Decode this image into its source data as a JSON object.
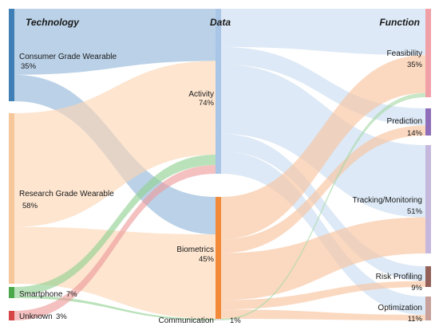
{
  "headers": {
    "technology": "Technology",
    "data": "Data",
    "function": "Function"
  },
  "nodes": [
    {
      "id": "consumer",
      "name": "Consumer Grade Wearable",
      "pct": "35%",
      "column": "technology",
      "color": "#3f7fb5"
    },
    {
      "id": "research",
      "name": "Research Grade Wearable",
      "pct": "58%",
      "column": "technology",
      "color": "#f7c79c"
    },
    {
      "id": "smartphone",
      "name": "Smartphone",
      "pct": "7%",
      "column": "technology",
      "color": "#4aa84a"
    },
    {
      "id": "unknown",
      "name": "Unknown",
      "pct": "3%",
      "column": "technology",
      "color": "#d64545"
    },
    {
      "id": "activity",
      "name": "Activity",
      "pct": "74%",
      "column": "data",
      "color": "#a9c6e6"
    },
    {
      "id": "biometrics",
      "name": "Biometrics",
      "pct": "45%",
      "column": "data",
      "color": "#f28a3a"
    },
    {
      "id": "communication",
      "name": "Communication",
      "pct": "1%",
      "column": "data",
      "color": "#dddddd"
    },
    {
      "id": "feasibility",
      "name": "Feasibility",
      "pct": "35%",
      "column": "function",
      "color": "#f2a0a8"
    },
    {
      "id": "prediction",
      "name": "Prediction",
      "pct": "14%",
      "column": "function",
      "color": "#8f6db8"
    },
    {
      "id": "tracking",
      "name": "Tracking/Monitoring",
      "pct": "51%",
      "column": "function",
      "color": "#c6b7dc"
    },
    {
      "id": "risk",
      "name": "Risk Profiling",
      "pct": "9%",
      "column": "function",
      "color": "#93605a"
    },
    {
      "id": "optimization",
      "name": "Optimization",
      "pct": "11%",
      "column": "function",
      "color": "#c9a19c"
    }
  ],
  "links": [
    {
      "source": "consumer",
      "target": "activity",
      "value": 30,
      "color": "#8fb4d9"
    },
    {
      "source": "consumer",
      "target": "biometrics",
      "value": 12,
      "color": "#8fb4d9"
    },
    {
      "source": "research",
      "target": "activity",
      "value": 54,
      "color": "#fbd5b3"
    },
    {
      "source": "research",
      "target": "biometrics",
      "value": 27,
      "color": "#fbd5b3"
    },
    {
      "source": "smartphone",
      "target": "activity",
      "value": 6,
      "color": "#8fd08f"
    },
    {
      "source": "smartphone",
      "target": "communication",
      "value": 2,
      "color": "#8fd08f"
    },
    {
      "source": "unknown",
      "target": "activity",
      "value": 5,
      "color": "#ee9a9a"
    },
    {
      "source": "activity",
      "target": "feasibility",
      "value": 22,
      "color": "#c8dbf0"
    },
    {
      "source": "activity",
      "target": "prediction",
      "value": 10,
      "color": "#c8dbf0"
    },
    {
      "source": "activity",
      "target": "tracking",
      "value": 40,
      "color": "#c8dbf0"
    },
    {
      "source": "activity",
      "target": "risk",
      "value": 10,
      "color": "#c8dbf0"
    },
    {
      "source": "activity",
      "target": "optimization",
      "value": 13,
      "color": "#c8dbf0"
    },
    {
      "source": "biometrics",
      "target": "feasibility",
      "value": 18,
      "color": "#f8c29b"
    },
    {
      "source": "biometrics",
      "target": "prediction",
      "value": 6,
      "color": "#f8c29b"
    },
    {
      "source": "biometrics",
      "target": "tracking",
      "value": 20,
      "color": "#f8c29b"
    },
    {
      "source": "biometrics",
      "target": "risk",
      "value": 4,
      "color": "#f8c29b"
    },
    {
      "source": "biometrics",
      "target": "optimization",
      "value": 4,
      "color": "#f8c29b"
    },
    {
      "source": "communication",
      "target": "feasibility",
      "value": 2,
      "color": "#a5d9a5"
    }
  ]
}
